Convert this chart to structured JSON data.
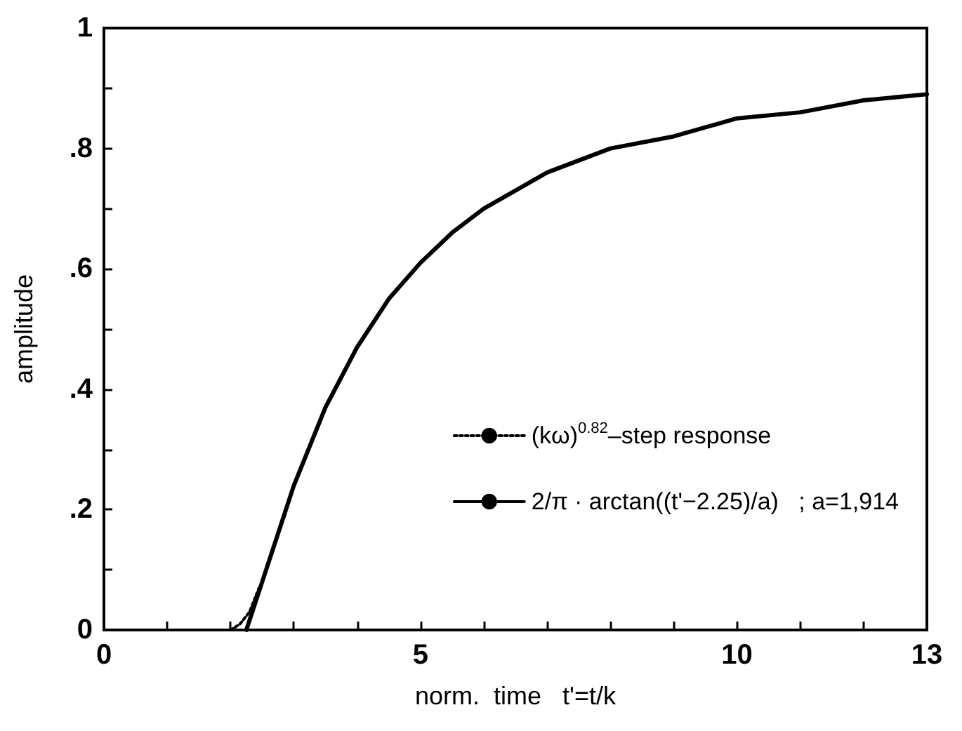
{
  "chart_data": {
    "type": "line",
    "xlabel": "norm.  time   t'=t/k",
    "ylabel": "amplitude",
    "xlim": [
      0,
      13
    ],
    "ylim": [
      0,
      1
    ],
    "xticks": [
      0,
      {
        "value": 1,
        "label": null
      },
      {
        "value": 2,
        "label": null
      },
      {
        "value": 3,
        "label": null
      },
      {
        "value": 4,
        "label": null
      },
      5,
      {
        "value": 6,
        "label": null
      },
      {
        "value": 7,
        "label": null
      },
      {
        "value": 8,
        "label": null
      },
      {
        "value": 9,
        "label": null
      },
      10,
      {
        "value": 11,
        "label": null
      },
      {
        "value": 12,
        "label": null
      },
      13
    ],
    "yticks": [
      0,
      {
        "value": 0.1,
        "label": null
      },
      {
        "value": 0.2,
        "label": ".2"
      },
      {
        "value": 0.3,
        "label": null
      },
      {
        "value": 0.4,
        "label": ".4"
      },
      {
        "value": 0.5,
        "label": null
      },
      {
        "value": 0.6,
        "label": ".6"
      },
      {
        "value": 0.7,
        "label": null
      },
      {
        "value": 0.8,
        "label": ".8"
      },
      {
        "value": 0.9,
        "label": null
      },
      1
    ],
    "grid": false,
    "legend": "bottom right",
    "marker": "none",
    "series": [
      {
        "name": "(kω)$^{0.82}$–step response",
        "color": "#000000",
        "line_style": "dotted",
        "x": [
          2.0,
          2.15,
          2.3,
          2.45
        ],
        "values": [
          0,
          0.01,
          0.03,
          0.07
        ]
      },
      {
        "name": "2/π · arctan((t'−2.25)/a)   ; a=1,914",
        "color": "#000000",
        "line_style": "solid",
        "x": [
          2.25,
          2.5,
          2.75,
          3,
          3.5,
          4,
          4.5,
          5,
          5.5,
          6,
          7,
          8,
          9,
          10,
          11,
          12,
          13
        ],
        "values": [
          0,
          0.08,
          0.16,
          0.24,
          0.37,
          0.47,
          0.55,
          0.61,
          0.66,
          0.7,
          0.76,
          0.8,
          0.82,
          0.85,
          0.86,
          0.88,
          0.89
        ]
      }
    ]
  }
}
